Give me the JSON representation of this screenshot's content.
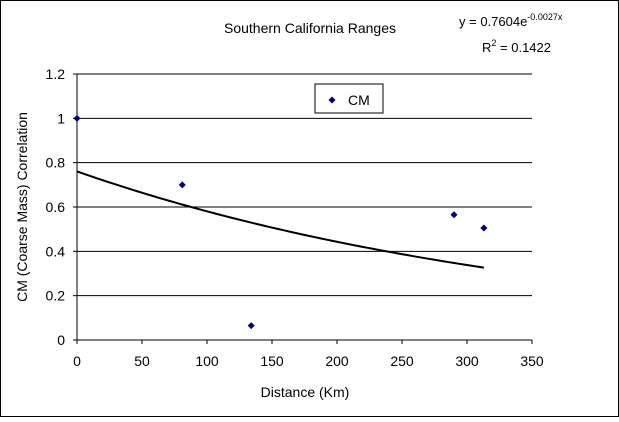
{
  "chart_data": {
    "type": "scatter",
    "title": "Southern California Ranges",
    "xlabel": "Distance (Km)",
    "ylabel": "CM (Coarse Mass) Correlation",
    "xlim": [
      0,
      350
    ],
    "ylim": [
      0,
      1.2
    ],
    "x_ticks": [
      "0",
      "50",
      "100",
      "150",
      "200",
      "250",
      "300",
      "350"
    ],
    "y_ticks": [
      "0",
      "0.2",
      "0.4",
      "0.6",
      "0.8",
      "1",
      "1.2"
    ],
    "grid": "horizontal",
    "legend_position": "top-center",
    "series": [
      {
        "name": "CM",
        "color": "#000080",
        "marker": "diamond",
        "points": [
          {
            "x": 0,
            "y": 1.0
          },
          {
            "x": 81,
            "y": 0.7
          },
          {
            "x": 134,
            "y": 0.065
          },
          {
            "x": 290,
            "y": 0.565
          },
          {
            "x": 313,
            "y": 0.505
          }
        ]
      }
    ],
    "trendline": {
      "type": "exponential",
      "a": 0.7604,
      "b": -0.0027,
      "x_range": [
        0,
        313
      ],
      "color": "#000000",
      "equation_base": "y = 0.7604e",
      "equation_exponent": "-0.0027x",
      "r2_base": "R",
      "r2_sup": "2",
      "r2_value": " = 0.1422"
    }
  }
}
